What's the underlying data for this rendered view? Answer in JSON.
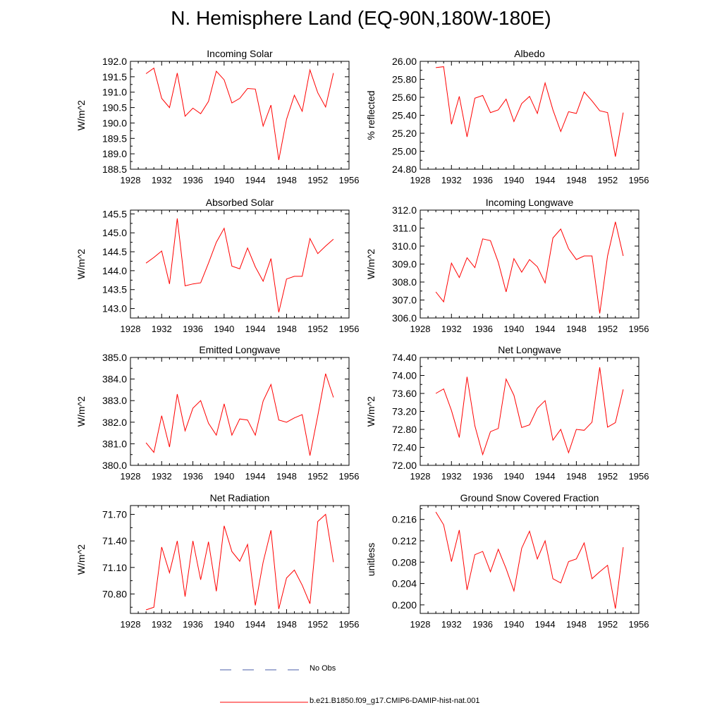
{
  "page": {
    "title": "N. Hemisphere Land (EQ-90N,180W-180E)"
  },
  "legend": [
    {
      "label": "No Obs",
      "color": "#4a5ea8",
      "style": "dashed"
    },
    {
      "label": "b.e21.B1850.f09_g17.CMIP6-DAMIP-hist-nat.001",
      "color": "#ff0000",
      "style": "solid"
    }
  ],
  "chart_data": [
    {
      "type": "line",
      "title": "Incoming Solar",
      "ylabel": "W/m^2",
      "xlim": [
        1928,
        1956
      ],
      "ylim": [
        188.5,
        192.0
      ],
      "xticks": [
        1928,
        1932,
        1936,
        1940,
        1944,
        1948,
        1952,
        1956
      ],
      "yticks": [
        "188.5",
        "189.0",
        "189.5",
        "190.0",
        "190.5",
        "191.0",
        "191.5",
        "192.0"
      ],
      "x": [
        1930,
        1931,
        1932,
        1933,
        1934,
        1935,
        1936,
        1937,
        1938,
        1939,
        1940,
        1941,
        1942,
        1943,
        1944,
        1945,
        1946,
        1947,
        1948,
        1949,
        1950,
        1951,
        1952,
        1953,
        1954
      ],
      "values": [
        191.6,
        191.78,
        190.8,
        190.5,
        191.62,
        190.22,
        190.48,
        190.3,
        190.7,
        191.68,
        191.4,
        190.65,
        190.8,
        191.12,
        191.1,
        189.9,
        190.58,
        188.8,
        190.12,
        190.9,
        190.38,
        191.72,
        190.98,
        190.52,
        191.62
      ]
    },
    {
      "type": "line",
      "title": "Albedo",
      "ylabel": "% reflected",
      "xlim": [
        1928,
        1956
      ],
      "ylim": [
        24.8,
        26.0
      ],
      "xticks": [
        1928,
        1932,
        1936,
        1940,
        1944,
        1948,
        1952,
        1956
      ],
      "yticks": [
        "24.80",
        "25.00",
        "25.20",
        "25.40",
        "25.60",
        "25.80",
        "26.00"
      ],
      "x": [
        1930,
        1931,
        1932,
        1933,
        1934,
        1935,
        1936,
        1937,
        1938,
        1939,
        1940,
        1941,
        1942,
        1943,
        1944,
        1945,
        1946,
        1947,
        1948,
        1949,
        1950,
        1951,
        1952,
        1953,
        1954
      ],
      "values": [
        25.93,
        25.94,
        25.3,
        25.61,
        25.16,
        25.59,
        25.62,
        25.43,
        25.46,
        25.58,
        25.33,
        25.53,
        25.61,
        25.42,
        25.76,
        25.46,
        25.22,
        25.44,
        25.42,
        25.66,
        25.56,
        25.45,
        25.43,
        24.94,
        25.43
      ]
    },
    {
      "type": "line",
      "title": "Absorbed Solar",
      "ylabel": "W/m^2",
      "xlim": [
        1928,
        1956
      ],
      "ylim": [
        142.75,
        145.6
      ],
      "xticks": [
        1928,
        1932,
        1936,
        1940,
        1944,
        1948,
        1952,
        1956
      ],
      "yticks": [
        "143.0",
        "143.5",
        "144.0",
        "144.5",
        "145.0",
        "145.5"
      ],
      "x": [
        1930,
        1931,
        1932,
        1933,
        1934,
        1935,
        1936,
        1937,
        1938,
        1939,
        1940,
        1941,
        1942,
        1943,
        1944,
        1945,
        1946,
        1947,
        1948,
        1949,
        1950,
        1951,
        1952,
        1953,
        1954
      ],
      "values": [
        144.2,
        144.35,
        144.52,
        143.65,
        145.38,
        143.6,
        143.65,
        143.68,
        144.2,
        144.75,
        145.12,
        144.12,
        144.05,
        144.6,
        144.1,
        143.72,
        144.32,
        142.9,
        143.78,
        143.85,
        143.85,
        144.85,
        144.45,
        144.65,
        144.83
      ]
    },
    {
      "type": "line",
      "title": "Incoming Longwave",
      "ylabel": "W/m^2",
      "xlim": [
        1928,
        1956
      ],
      "ylim": [
        306.0,
        312.0
      ],
      "xticks": [
        1928,
        1932,
        1936,
        1940,
        1944,
        1948,
        1952,
        1956
      ],
      "yticks": [
        "306.0",
        "307.0",
        "308.0",
        "309.0",
        "310.0",
        "311.0",
        "312.0"
      ],
      "x": [
        1930,
        1931,
        1932,
        1933,
        1934,
        1935,
        1936,
        1937,
        1938,
        1939,
        1940,
        1941,
        1942,
        1943,
        1944,
        1945,
        1946,
        1947,
        1948,
        1949,
        1950,
        1951,
        1952,
        1953,
        1954
      ],
      "values": [
        307.45,
        306.9,
        309.05,
        308.25,
        309.35,
        308.8,
        310.4,
        310.3,
        309.1,
        307.45,
        309.3,
        308.55,
        309.25,
        308.85,
        307.95,
        310.45,
        310.95,
        309.85,
        309.25,
        309.45,
        309.45,
        306.25,
        309.45,
        311.35,
        309.45
      ]
    },
    {
      "type": "line",
      "title": "Emitted Longwave",
      "ylabel": "W/m^2",
      "xlim": [
        1928,
        1956
      ],
      "ylim": [
        380.0,
        385.0
      ],
      "xticks": [
        1928,
        1932,
        1936,
        1940,
        1944,
        1948,
        1952,
        1956
      ],
      "yticks": [
        "380.0",
        "381.0",
        "382.0",
        "383.0",
        "384.0",
        "385.0"
      ],
      "x": [
        1930,
        1931,
        1932,
        1933,
        1934,
        1935,
        1936,
        1937,
        1938,
        1939,
        1940,
        1941,
        1942,
        1943,
        1944,
        1945,
        1946,
        1947,
        1948,
        1949,
        1950,
        1951,
        1952,
        1953,
        1954
      ],
      "values": [
        381.05,
        380.6,
        382.3,
        380.85,
        383.3,
        381.6,
        382.65,
        383.0,
        381.95,
        381.4,
        382.85,
        381.4,
        382.15,
        382.1,
        381.4,
        382.98,
        383.75,
        382.1,
        382.0,
        382.2,
        382.35,
        380.45,
        382.3,
        384.25,
        383.15
      ]
    },
    {
      "type": "line",
      "title": "Net Longwave",
      "ylabel": "W/m^2",
      "xlim": [
        1928,
        1956
      ],
      "ylim": [
        72.0,
        74.4
      ],
      "xticks": [
        1928,
        1932,
        1936,
        1940,
        1944,
        1948,
        1952,
        1956
      ],
      "yticks": [
        "72.00",
        "72.40",
        "72.80",
        "73.20",
        "73.60",
        "74.00",
        "74.40"
      ],
      "x": [
        1930,
        1931,
        1932,
        1933,
        1934,
        1935,
        1936,
        1937,
        1938,
        1939,
        1940,
        1941,
        1942,
        1943,
        1944,
        1945,
        1946,
        1947,
        1948,
        1949,
        1950,
        1951,
        1952,
        1953,
        1954
      ],
      "values": [
        73.6,
        73.7,
        73.22,
        72.62,
        73.97,
        72.88,
        72.24,
        72.75,
        72.82,
        73.92,
        73.56,
        72.84,
        72.9,
        73.27,
        73.44,
        72.56,
        72.8,
        72.28,
        72.8,
        72.78,
        72.96,
        74.18,
        72.85,
        72.95,
        73.69
      ]
    },
    {
      "type": "line",
      "title": "Net Radiation",
      "ylabel": "W/m^2",
      "xlim": [
        1928,
        1956
      ],
      "ylim": [
        70.58,
        71.8
      ],
      "xticks": [
        1928,
        1932,
        1936,
        1940,
        1944,
        1948,
        1952,
        1956
      ],
      "yticks": [
        "70.80",
        "71.10",
        "71.40",
        "71.70"
      ],
      "x": [
        1930,
        1931,
        1932,
        1933,
        1934,
        1935,
        1936,
        1937,
        1938,
        1939,
        1940,
        1941,
        1942,
        1943,
        1944,
        1945,
        1946,
        1947,
        1948,
        1949,
        1950,
        1951,
        1952,
        1953,
        1954
      ],
      "values": [
        70.62,
        70.65,
        71.33,
        71.04,
        71.4,
        70.77,
        71.4,
        70.96,
        71.39,
        70.83,
        71.57,
        71.28,
        71.17,
        71.36,
        70.67,
        71.16,
        71.52,
        70.63,
        70.98,
        71.07,
        70.9,
        70.69,
        71.62,
        71.7,
        71.16
      ]
    },
    {
      "type": "line",
      "title": "Ground Snow Covered Fraction",
      "ylabel": "unitless",
      "xlim": [
        1928,
        1956
      ],
      "ylim": [
        0.1984,
        0.2186
      ],
      "xticks": [
        1928,
        1932,
        1936,
        1940,
        1944,
        1948,
        1952,
        1956
      ],
      "yticks": [
        "0.200",
        "0.204",
        "0.208",
        "0.212",
        "0.216"
      ],
      "x": [
        1930,
        1931,
        1932,
        1933,
        1934,
        1935,
        1936,
        1937,
        1938,
        1939,
        1940,
        1941,
        1942,
        1943,
        1944,
        1945,
        1946,
        1947,
        1948,
        1949,
        1950,
        1951,
        1952,
        1953,
        1954
      ],
      "values": [
        0.2174,
        0.215,
        0.2081,
        0.214,
        0.2028,
        0.2094,
        0.21,
        0.2062,
        0.2104,
        0.2068,
        0.2026,
        0.2106,
        0.2138,
        0.2086,
        0.212,
        0.2049,
        0.2041,
        0.2081,
        0.2086,
        0.2116,
        0.2049,
        0.2062,
        0.2074,
        0.1993,
        0.2108
      ]
    }
  ]
}
